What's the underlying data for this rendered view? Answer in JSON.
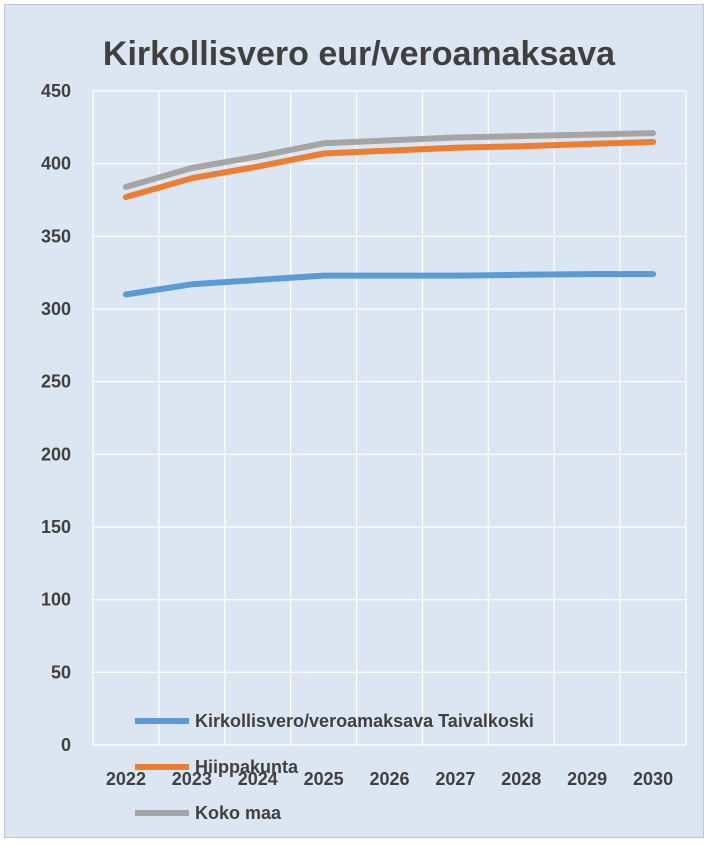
{
  "chart_data": {
    "type": "line",
    "title": "Kirkollisvero eur/veroamaksava",
    "xlabel": "",
    "ylabel": "",
    "categories": [
      "2022",
      "2023",
      "2024",
      "2025",
      "2026",
      "2027",
      "2028",
      "2029",
      "2030"
    ],
    "ylim": [
      0,
      450
    ],
    "yticks": [
      "0",
      "50",
      "100",
      "150",
      "200",
      "250",
      "300",
      "350",
      "400",
      "450"
    ],
    "grid": true,
    "legend_position": "bottom-left",
    "series": [
      {
        "name": "Kirkollisvero/veroamaksava Taivalkoski",
        "color": "#5b9bd5",
        "values": [
          310,
          317,
          320,
          323,
          323,
          323,
          323.5,
          324,
          324
        ]
      },
      {
        "name": "Hiippakunta",
        "color": "#ed7d31",
        "values": [
          377,
          390,
          398,
          407,
          409,
          411,
          412,
          413.5,
          415
        ]
      },
      {
        "name": "Koko maa",
        "color": "#a5a5a5",
        "values": [
          384,
          397,
          405,
          414,
          416,
          418,
          419,
          420,
          421
        ]
      }
    ]
  },
  "colors": {
    "background": "#dce6f2",
    "grid": "#ffffff",
    "text": "#404040"
  }
}
